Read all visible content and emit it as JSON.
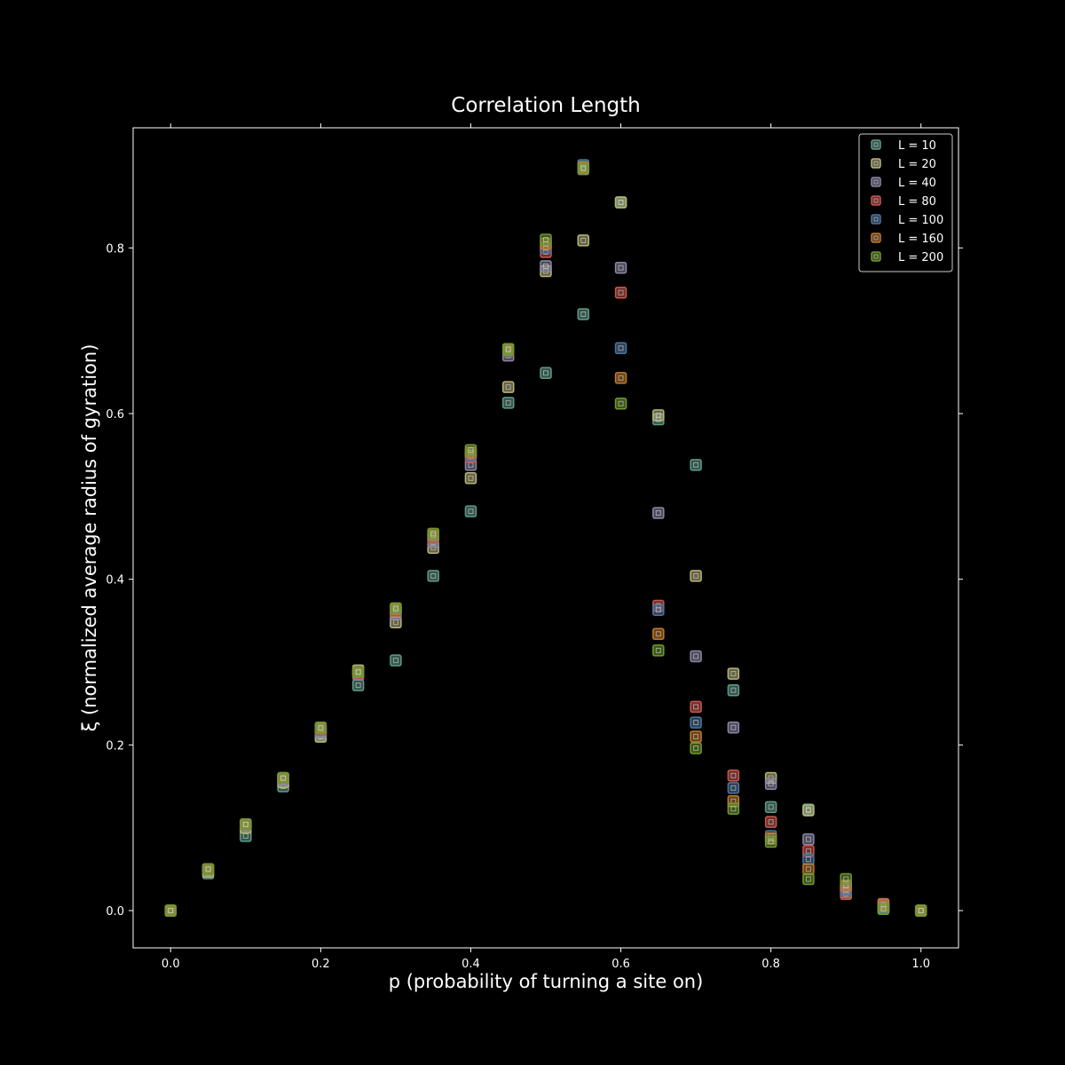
{
  "chart_data": {
    "type": "scatter",
    "title": "Correlation Length",
    "xlabel": "p (probability of turning a site on)",
    "ylabel": "ξ (normalized average radius of gyration)",
    "xlim": [
      -0.05,
      1.05
    ],
    "ylim": [
      -0.045,
      0.945
    ],
    "xticks": [
      0.0,
      0.2,
      0.4,
      0.6,
      0.8,
      1.0
    ],
    "xtick_labels": [
      "0.0",
      "0.2",
      "0.4",
      "0.6",
      "0.8",
      "1.0"
    ],
    "yticks": [
      0.0,
      0.2,
      0.4,
      0.6,
      0.8
    ],
    "ytick_labels": [
      "0.0",
      "0.2",
      "0.4",
      "0.6",
      "0.8"
    ],
    "grid": false,
    "legend_position": "top-right",
    "background": "#000000",
    "foreground": "#ffffff",
    "x": [
      0.0,
      0.05,
      0.1,
      0.15,
      0.2,
      0.25,
      0.3,
      0.35,
      0.4,
      0.45,
      0.5,
      0.55,
      0.6,
      0.65,
      0.7,
      0.75,
      0.8,
      0.85,
      0.9,
      0.95,
      1.0
    ],
    "series": [
      {
        "name": "L = 10",
        "color": "#5f9a8a",
        "values": [
          0.0,
          0.045,
          0.09,
          0.15,
          0.21,
          0.272,
          0.302,
          0.404,
          0.482,
          0.613,
          0.649,
          0.72,
          0.855,
          0.593,
          0.538,
          0.266,
          0.125,
          0.122,
          0.022,
          0.002,
          0.0
        ]
      },
      {
        "name": "L = 20",
        "color": "#b8b57a",
        "values": [
          0.0,
          0.047,
          0.1,
          0.155,
          0.21,
          0.29,
          0.348,
          0.438,
          0.522,
          0.632,
          0.772,
          0.809,
          0.855,
          0.598,
          0.404,
          0.286,
          0.16,
          0.121,
          0.025,
          0.004,
          0.0
        ]
      },
      {
        "name": "L = 40",
        "color": "#8a86a8",
        "values": [
          0.0,
          0.05,
          0.103,
          0.158,
          0.215,
          0.285,
          0.358,
          0.445,
          0.538,
          0.67,
          0.778,
          0.895,
          0.776,
          0.48,
          0.307,
          0.221,
          0.153,
          0.086,
          0.028,
          0.005,
          0.0
        ]
      },
      {
        "name": "L = 80",
        "color": "#c9574f",
        "values": [
          0.0,
          0.05,
          0.104,
          0.16,
          0.218,
          0.287,
          0.362,
          0.45,
          0.548,
          0.675,
          0.795,
          0.898,
          0.746,
          0.368,
          0.246,
          0.163,
          0.107,
          0.072,
          0.02,
          0.008,
          0.0
        ]
      },
      {
        "name": "L = 100",
        "color": "#4f74a0",
        "values": [
          0.0,
          0.05,
          0.104,
          0.16,
          0.219,
          0.288,
          0.363,
          0.452,
          0.55,
          0.676,
          0.8,
          0.9,
          0.679,
          0.363,
          0.227,
          0.148,
          0.09,
          0.062,
          0.025,
          0.004,
          0.0
        ]
      },
      {
        "name": "L = 160",
        "color": "#c07a2e",
        "values": [
          0.0,
          0.05,
          0.104,
          0.16,
          0.22,
          0.288,
          0.364,
          0.453,
          0.553,
          0.677,
          0.805,
          0.897,
          0.643,
          0.334,
          0.21,
          0.132,
          0.087,
          0.05,
          0.03,
          0.007,
          0.0
        ]
      },
      {
        "name": "L = 200",
        "color": "#6f9a2e",
        "values": [
          0.0,
          0.05,
          0.104,
          0.16,
          0.221,
          0.288,
          0.365,
          0.455,
          0.556,
          0.678,
          0.81,
          0.896,
          0.612,
          0.314,
          0.196,
          0.123,
          0.083,
          0.038,
          0.038,
          0.002,
          0.0
        ]
      }
    ]
  }
}
